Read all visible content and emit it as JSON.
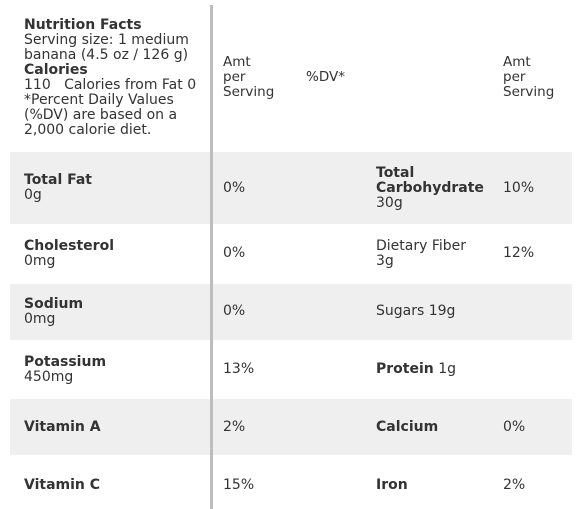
{
  "header": {
    "title": "Nutrition Facts",
    "serving_line1": "Serving size: 1 medium",
    "serving_line2": "banana (4.5 oz / 126 g)",
    "calories_label": "Calories",
    "calories_line": "110   Calories from Fat 0",
    "dv_note_line1": "*Percent Daily Values",
    "dv_note_line2": "(%DV) are based on a",
    "dv_note_line3": "2,000 calorie diet.",
    "col_amt1": [
      "Amt",
      "per",
      "Serving"
    ],
    "col_dv": "%DV*",
    "col_amt2": [
      "Amt",
      "per",
      "Serving"
    ]
  },
  "rows": [
    {
      "left_name": "Total Fat",
      "left_amount": "0g",
      "left_dv": "0%",
      "right_name_lines": [
        "Total",
        "Carbohydrate"
      ],
      "right_amount": "30g",
      "right_dv": "10%"
    },
    {
      "left_name": "Cholesterol",
      "left_amount": "0mg",
      "left_dv": "0%",
      "right_name": "Dietary Fiber",
      "right_amount": "3g",
      "right_dv": "12%"
    },
    {
      "left_name": "Sodium",
      "left_amount": "0mg",
      "left_dv": "0%",
      "right_name": "Sugars",
      "right_amount": "19g",
      "right_dv": ""
    },
    {
      "left_name": "Potassium",
      "left_amount": "450mg",
      "left_dv": "13%",
      "right_name": "Protein",
      "right_amount": "1g",
      "right_dv": ""
    },
    {
      "left_name": "Vitamin A",
      "left_dv": "2%",
      "right_name": "Calcium",
      "right_dv": "0%"
    },
    {
      "left_name": "Vitamin C",
      "left_dv": "15%",
      "right_name": "Iron",
      "right_dv": "2%"
    }
  ]
}
